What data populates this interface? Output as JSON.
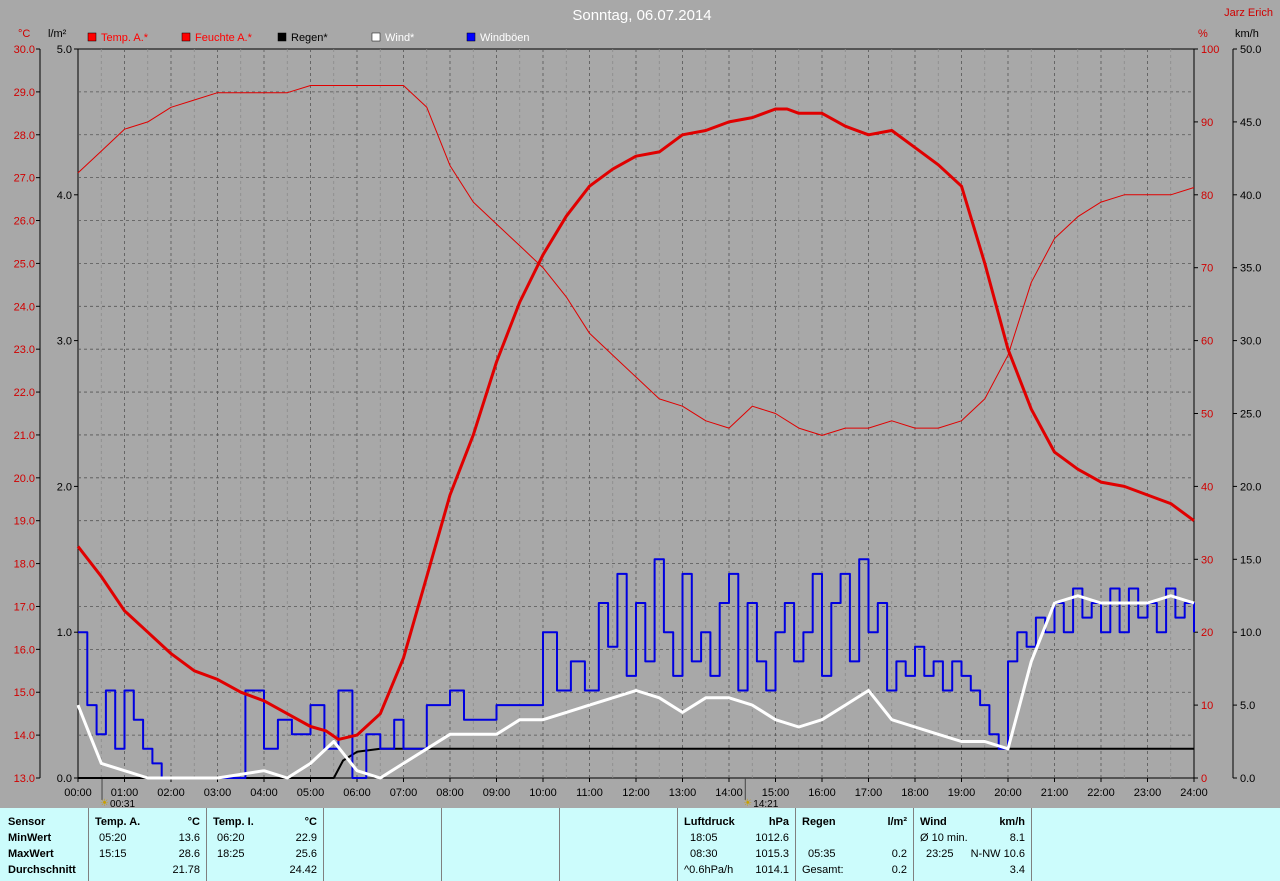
{
  "title": "Sonntag, 06.07.2014",
  "author": "Jarz Erich",
  "colors": {
    "background": "#a8a8a8",
    "temp": "#e00000",
    "humidity": "#e00000",
    "rain": "#000000",
    "wind": "#ffffff",
    "gusts": "#0000e0",
    "table_bg": "#ccfcfc"
  },
  "legend": [
    {
      "label": "Temp. A.*",
      "color": "#ff0000",
      "text_color": "#ff0000"
    },
    {
      "label": "Feuchte A.*",
      "color": "#ff0000",
      "text_color": "#ff0000"
    },
    {
      "label": "Regen*",
      "color": "#000000",
      "text_color": "#000000"
    },
    {
      "label": "Wind*",
      "color": "#ffffff",
      "text_color": "#ffffff"
    },
    {
      "label": "Windböen",
      "color": "#0000ff",
      "text_color": "#ffffff"
    }
  ],
  "axes": {
    "temp_unit": "°C",
    "rain_unit": "l/m²",
    "humidity_unit": "%",
    "wind_unit": "km/h",
    "temp_ticks": [
      "30.0",
      "29.0",
      "28.0",
      "27.0",
      "26.0",
      "25.0",
      "24.0",
      "23.0",
      "22.0",
      "21.0",
      "20.0",
      "19.0",
      "18.0",
      "17.0",
      "16.0",
      "15.0",
      "14.0",
      "13.0"
    ],
    "rain_ticks": [
      "5.0",
      "4.0",
      "3.0",
      "2.0",
      "1.0",
      "0.0"
    ],
    "humidity_ticks": [
      "100",
      "90",
      "80",
      "70",
      "60",
      "50",
      "40",
      "30",
      "20",
      "10",
      "0"
    ],
    "wind_ticks": [
      "50.0",
      "45.0",
      "40.0",
      "35.0",
      "30.0",
      "25.0",
      "20.0",
      "15.0",
      "10.0",
      "5.0",
      "0.0"
    ],
    "time_ticks": [
      "00:00",
      "01:00",
      "02:00",
      "03:00",
      "04:00",
      "05:00",
      "06:00",
      "07:00",
      "08:00",
      "09:00",
      "10:00",
      "11:00",
      "12:00",
      "13:00",
      "14:00",
      "15:00",
      "16:00",
      "17:00",
      "18:00",
      "19:00",
      "20:00",
      "21:00",
      "22:00",
      "23:00",
      "24:00"
    ],
    "sunrise": "00:31",
    "sunset": "14:21"
  },
  "chart_data": {
    "type": "line",
    "title": "Sonntag, 06.07.2014",
    "x_unit": "hours",
    "xlim": [
      0,
      24
    ],
    "ylim_temp": [
      13,
      30
    ],
    "ylim_rain": [
      0,
      5
    ],
    "ylim_humidity": [
      0,
      100
    ],
    "ylim_wind": [
      0,
      50
    ],
    "series": [
      {
        "name": "Temp. A.*",
        "axis": "temp",
        "x": [
          0,
          0.5,
          1,
          1.5,
          2,
          2.5,
          3,
          3.5,
          4,
          4.5,
          5,
          5.33,
          5.6,
          6,
          6.5,
          7,
          7.5,
          8,
          8.5,
          9,
          9.5,
          10,
          10.5,
          11,
          11.5,
          12,
          12.5,
          13,
          13.5,
          14,
          14.5,
          15,
          15.25,
          15.5,
          16,
          16.5,
          17,
          17.5,
          18,
          18.5,
          19,
          19.5,
          20,
          20.5,
          21,
          21.5,
          22,
          22.5,
          23,
          23.5,
          24
        ],
        "values": [
          18.4,
          17.7,
          16.9,
          16.4,
          15.9,
          15.5,
          15.3,
          15.0,
          14.8,
          14.5,
          14.2,
          14.1,
          13.9,
          14.0,
          14.5,
          15.8,
          17.7,
          19.6,
          21.0,
          22.7,
          24.1,
          25.2,
          26.1,
          26.8,
          27.2,
          27.5,
          27.6,
          28.0,
          28.1,
          28.3,
          28.4,
          28.6,
          28.6,
          28.5,
          28.5,
          28.2,
          28.0,
          28.1,
          27.7,
          27.3,
          26.8,
          25.0,
          23.0,
          21.6,
          20.6,
          20.2,
          19.9,
          19.8,
          19.6,
          19.4,
          19.0
        ]
      },
      {
        "name": "Feuchte A.*",
        "axis": "humidity",
        "x": [
          0,
          0.5,
          1,
          1.5,
          2,
          2.5,
          3,
          3.5,
          4,
          4.5,
          5,
          5.5,
          6,
          6.5,
          7,
          7.5,
          8,
          8.5,
          9,
          9.5,
          10,
          10.5,
          11,
          11.5,
          12,
          12.5,
          13,
          13.5,
          14,
          14.5,
          15,
          15.5,
          16,
          16.5,
          17,
          17.5,
          18,
          18.5,
          19,
          19.5,
          20,
          20.5,
          21,
          21.5,
          22,
          22.5,
          23,
          23.5,
          24
        ],
        "values": [
          83,
          86,
          89,
          90,
          92,
          93,
          94,
          94,
          94,
          94,
          95,
          95,
          95,
          95,
          95,
          92,
          84,
          79,
          76,
          73,
          70,
          66,
          61,
          58,
          55,
          52,
          51,
          49,
          48,
          51,
          50,
          48,
          47,
          48,
          48,
          49,
          48,
          48,
          49,
          52,
          58,
          68,
          74,
          77,
          79,
          80,
          80,
          80,
          81
        ]
      },
      {
        "name": "Regen*",
        "axis": "rain",
        "x": [
          0,
          5.5,
          5.7,
          6,
          6.5,
          7,
          8,
          24
        ],
        "values": [
          0,
          0,
          0.12,
          0.18,
          0.2,
          0.2,
          0.2,
          0.2
        ]
      },
      {
        "name": "Wind*",
        "axis": "wind",
        "x": [
          0,
          0.25,
          0.5,
          1,
          1.5,
          2,
          3,
          4,
          4.5,
          5,
          5.5,
          6,
          6.5,
          7,
          7.5,
          8,
          8.5,
          9,
          9.5,
          10,
          10.5,
          11,
          11.5,
          12,
          12.5,
          13,
          13.5,
          14,
          14.5,
          15,
          15.5,
          16,
          16.5,
          17,
          17.5,
          18,
          18.5,
          19,
          19.5,
          20,
          20.5,
          21,
          21.5,
          22,
          22.5,
          23,
          23.5,
          24
        ],
        "values": [
          5,
          3,
          1,
          0.5,
          0,
          0,
          0,
          0.5,
          0,
          1,
          2.5,
          0.5,
          0,
          1,
          2,
          3,
          3,
          3,
          4,
          4,
          4.5,
          5,
          5.5,
          6,
          5.5,
          4.5,
          5.5,
          5.5,
          5,
          4,
          3.5,
          4,
          5,
          6,
          4,
          3.5,
          3,
          2.5,
          2.5,
          2,
          8,
          12,
          12.5,
          12,
          12,
          12,
          12.5,
          12
        ]
      },
      {
        "name": "Windböen",
        "axis": "wind",
        "x": [
          0,
          0.2,
          0.4,
          0.6,
          0.8,
          1,
          1.2,
          1.4,
          1.6,
          1.8,
          2,
          2.5,
          3,
          3.4,
          3.6,
          4,
          4.3,
          4.6,
          5,
          5.3,
          5.6,
          5.9,
          6.2,
          6.5,
          6.8,
          7,
          7.5,
          8,
          8.3,
          8.6,
          9,
          9.3,
          9.6,
          10,
          10.3,
          10.6,
          10.9,
          11.2,
          11.4,
          11.6,
          11.8,
          12,
          12.2,
          12.4,
          12.6,
          12.8,
          13,
          13.2,
          13.4,
          13.6,
          13.8,
          14,
          14.2,
          14.4,
          14.6,
          14.8,
          15,
          15.2,
          15.4,
          15.6,
          15.8,
          16,
          16.2,
          16.4,
          16.6,
          16.8,
          17,
          17.2,
          17.4,
          17.6,
          17.8,
          18,
          18.2,
          18.4,
          18.6,
          18.8,
          19,
          19.2,
          19.4,
          19.6,
          19.8,
          20,
          20.2,
          20.4,
          20.6,
          20.8,
          21,
          21.2,
          21.4,
          21.6,
          21.8,
          22,
          22.2,
          22.4,
          22.6,
          22.8,
          23,
          23.2,
          23.4,
          23.6,
          23.8,
          24
        ],
        "values": [
          10,
          5,
          3,
          6,
          2,
          6,
          4,
          2,
          1,
          0,
          0,
          0,
          0,
          0,
          6,
          2,
          4,
          3,
          5,
          2,
          6,
          0,
          3,
          2,
          4,
          2,
          5,
          6,
          4,
          4,
          5,
          5,
          5,
          10,
          6,
          8,
          6,
          12,
          9,
          14,
          7,
          12,
          8,
          15,
          10,
          7,
          14,
          8,
          10,
          7,
          12,
          14,
          6,
          12,
          8,
          6,
          10,
          12,
          8,
          10,
          14,
          7,
          12,
          14,
          8,
          15,
          10,
          12,
          6,
          8,
          7,
          9,
          7,
          8,
          6,
          8,
          7,
          6,
          5,
          3,
          2,
          8,
          10,
          9,
          11,
          10,
          12,
          10,
          13,
          11,
          12,
          10,
          13,
          10,
          13,
          11,
          12,
          10,
          13,
          11,
          12,
          10
        ]
      }
    ]
  },
  "table": {
    "sensor": {
      "header": "Sensor",
      "rows": [
        "MinWert",
        "MaxWert",
        "Durchschnitt"
      ]
    },
    "temp_a": {
      "header": "Temp. A.",
      "unit": "°C",
      "rows": [
        [
          "05:20",
          "13.6"
        ],
        [
          "15:15",
          "28.6"
        ],
        [
          "",
          "21.78"
        ]
      ]
    },
    "temp_i": {
      "header": "Temp. I.",
      "unit": "°C",
      "rows": [
        [
          "06:20",
          "22.9"
        ],
        [
          "18:25",
          "25.6"
        ],
        [
          "",
          "24.42"
        ]
      ]
    },
    "luftdruck": {
      "header": "Luftdruck",
      "unit": "hPa",
      "rows": [
        [
          "18:05",
          "1012.6"
        ],
        [
          "08:30",
          "1015.3"
        ],
        [
          "^0.6hPa/h",
          "1014.1"
        ]
      ]
    },
    "regen": {
      "header": "Regen",
      "unit": "l/m²",
      "rows": [
        [
          "",
          ""
        ],
        [
          "05:35",
          "0.2"
        ],
        [
          "Gesamt:",
          "0.2"
        ]
      ]
    },
    "wind": {
      "header": "Wind",
      "unit": "km/h",
      "rows": [
        [
          "Ø 10 min.",
          "8.1"
        ],
        [
          "23:25",
          "N-NW 10.6"
        ],
        [
          "",
          "3.4"
        ]
      ]
    }
  }
}
